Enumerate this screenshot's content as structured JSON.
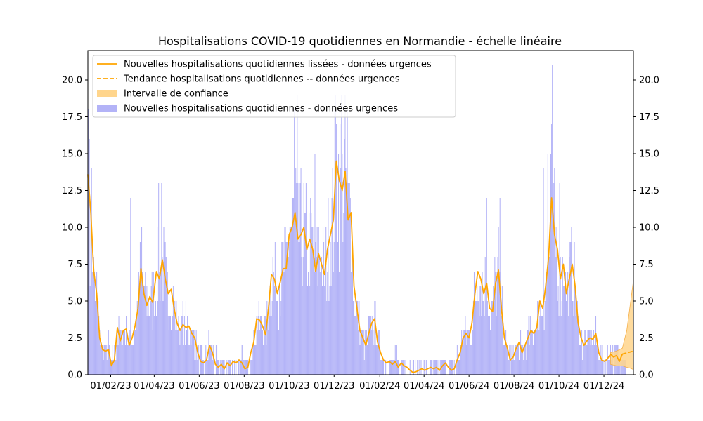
{
  "chart_data": {
    "type": "bar",
    "title": "Hospitalisations COVID-19 quotidiennes en Normandie - échelle linéaire",
    "xlabel": "",
    "ylabel": "",
    "ylim": [
      0,
      22
    ],
    "yticks": [
      "0.0",
      "2.5",
      "5.0",
      "7.5",
      "10.0",
      "12.5",
      "15.0",
      "17.5",
      "20.0"
    ],
    "ytick_values": [
      0,
      2.5,
      5,
      7.5,
      10,
      12.5,
      15,
      17.5,
      20
    ],
    "x_range": [
      "2023-01-01",
      "2025-01-10"
    ],
    "xticks": [
      "01/02/23",
      "01/04/23",
      "01/06/23",
      "01/08/23",
      "01/10/23",
      "01/12/23",
      "01/02/24",
      "01/04/24",
      "01/06/24",
      "01/08/24",
      "01/10/24",
      "01/12/24"
    ],
    "xtick_dates": [
      "2023-02-01",
      "2023-04-01",
      "2023-06-01",
      "2023-08-01",
      "2023-10-01",
      "2023-12-01",
      "2024-02-01",
      "2024-04-01",
      "2024-06-01",
      "2024-08-01",
      "2024-10-01",
      "2024-12-01"
    ],
    "grid": false,
    "legend_position": "top-left",
    "colors": {
      "bars": "#b3b3f7",
      "smoothed": "#ffa500",
      "trend": "#ffa500",
      "confidence": "#ffd58c"
    },
    "series": [
      {
        "name": "Nouvelles hospitalisations quotidiennes lissées - données urgences",
        "kind": "line",
        "points": [
          [
            "2023-01-01",
            13.6
          ],
          [
            "2023-01-05",
            11.0
          ],
          [
            "2023-01-09",
            7.0
          ],
          [
            "2023-01-13",
            5.5
          ],
          [
            "2023-01-17",
            2.5
          ],
          [
            "2023-01-21",
            1.7
          ],
          [
            "2023-01-25",
            1.6
          ],
          [
            "2023-01-29",
            1.7
          ],
          [
            "2023-02-02",
            0.6
          ],
          [
            "2023-02-06",
            1.0
          ],
          [
            "2023-02-10",
            3.2
          ],
          [
            "2023-02-14",
            2.3
          ],
          [
            "2023-02-18",
            3.0
          ],
          [
            "2023-02-22",
            3.1
          ],
          [
            "2023-02-26",
            2.0
          ],
          [
            "2023-03-02",
            2.5
          ],
          [
            "2023-03-06",
            3.3
          ],
          [
            "2023-03-10",
            4.5
          ],
          [
            "2023-03-14",
            7.2
          ],
          [
            "2023-03-18",
            5.5
          ],
          [
            "2023-03-22",
            4.7
          ],
          [
            "2023-03-26",
            5.3
          ],
          [
            "2023-03-30",
            4.9
          ],
          [
            "2023-04-04",
            7.0
          ],
          [
            "2023-04-08",
            6.5
          ],
          [
            "2023-04-12",
            7.8
          ],
          [
            "2023-04-16",
            6.5
          ],
          [
            "2023-04-20",
            5.5
          ],
          [
            "2023-04-24",
            5.8
          ],
          [
            "2023-04-28",
            4.5
          ],
          [
            "2023-05-02",
            3.5
          ],
          [
            "2023-05-06",
            3.0
          ],
          [
            "2023-05-10",
            3.4
          ],
          [
            "2023-05-14",
            3.2
          ],
          [
            "2023-05-18",
            3.3
          ],
          [
            "2023-05-22",
            2.8
          ],
          [
            "2023-05-26",
            2.5
          ],
          [
            "2023-05-30",
            1.5
          ],
          [
            "2023-06-03",
            0.9
          ],
          [
            "2023-06-07",
            0.8
          ],
          [
            "2023-06-11",
            1.0
          ],
          [
            "2023-06-15",
            2.0
          ],
          [
            "2023-06-19",
            1.5
          ],
          [
            "2023-06-23",
            0.7
          ],
          [
            "2023-06-27",
            0.5
          ],
          [
            "2023-07-01",
            0.7
          ],
          [
            "2023-07-05",
            0.4
          ],
          [
            "2023-07-09",
            0.8
          ],
          [
            "2023-07-13",
            0.6
          ],
          [
            "2023-07-17",
            0.9
          ],
          [
            "2023-07-21",
            0.8
          ],
          [
            "2023-07-25",
            1.0
          ],
          [
            "2023-07-29",
            0.8
          ],
          [
            "2023-08-02",
            0.4
          ],
          [
            "2023-08-06",
            0.5
          ],
          [
            "2023-08-10",
            1.5
          ],
          [
            "2023-08-14",
            2.2
          ],
          [
            "2023-08-18",
            3.8
          ],
          [
            "2023-08-22",
            3.7
          ],
          [
            "2023-08-26",
            3.3
          ],
          [
            "2023-08-30",
            2.7
          ],
          [
            "2023-09-03",
            4.5
          ],
          [
            "2023-09-07",
            6.8
          ],
          [
            "2023-09-11",
            6.5
          ],
          [
            "2023-09-15",
            5.5
          ],
          [
            "2023-09-19",
            6.3
          ],
          [
            "2023-09-23",
            7.2
          ],
          [
            "2023-09-27",
            7.2
          ],
          [
            "2023-10-01",
            9.5
          ],
          [
            "2023-10-05",
            10.0
          ],
          [
            "2023-10-09",
            11.0
          ],
          [
            "2023-10-13",
            9.2
          ],
          [
            "2023-10-17",
            9.5
          ],
          [
            "2023-10-21",
            10.0
          ],
          [
            "2023-10-25",
            8.5
          ],
          [
            "2023-10-29",
            9.2
          ],
          [
            "2023-11-02",
            8.5
          ],
          [
            "2023-11-06",
            7.0
          ],
          [
            "2023-11-10",
            8.2
          ],
          [
            "2023-11-14",
            7.5
          ],
          [
            "2023-11-18",
            6.8
          ],
          [
            "2023-11-22",
            8.5
          ],
          [
            "2023-11-26",
            9.5
          ],
          [
            "2023-11-30",
            10.5
          ],
          [
            "2023-12-04",
            14.5
          ],
          [
            "2023-12-08",
            13.2
          ],
          [
            "2023-12-12",
            12.5
          ],
          [
            "2023-12-16",
            13.8
          ],
          [
            "2023-12-20",
            10.5
          ],
          [
            "2023-12-24",
            11.0
          ],
          [
            "2023-12-28",
            6.0
          ],
          [
            "2024-01-01",
            4.5
          ],
          [
            "2024-01-05",
            3.0
          ],
          [
            "2024-01-09",
            2.5
          ],
          [
            "2024-01-13",
            2.0
          ],
          [
            "2024-01-17",
            2.8
          ],
          [
            "2024-01-21",
            3.5
          ],
          [
            "2024-01-25",
            3.8
          ],
          [
            "2024-01-29",
            2.2
          ],
          [
            "2024-02-02",
            1.5
          ],
          [
            "2024-02-06",
            1.0
          ],
          [
            "2024-02-10",
            0.8
          ],
          [
            "2024-02-14",
            0.9
          ],
          [
            "2024-02-18",
            0.7
          ],
          [
            "2024-02-22",
            0.9
          ],
          [
            "2024-02-26",
            0.5
          ],
          [
            "2024-03-01",
            0.8
          ],
          [
            "2024-03-05",
            0.6
          ],
          [
            "2024-03-09",
            0.5
          ],
          [
            "2024-03-13",
            0.3
          ],
          [
            "2024-03-17",
            0.15
          ],
          [
            "2024-03-21",
            0.2
          ],
          [
            "2024-03-25",
            0.3
          ],
          [
            "2024-03-29",
            0.4
          ],
          [
            "2024-04-02",
            0.3
          ],
          [
            "2024-04-06",
            0.4
          ],
          [
            "2024-04-10",
            0.5
          ],
          [
            "2024-04-14",
            0.4
          ],
          [
            "2024-04-18",
            0.5
          ],
          [
            "2024-04-22",
            0.3
          ],
          [
            "2024-04-26",
            0.6
          ],
          [
            "2024-04-30",
            0.8
          ],
          [
            "2024-05-04",
            0.5
          ],
          [
            "2024-05-08",
            0.3
          ],
          [
            "2024-05-12",
            0.4
          ],
          [
            "2024-05-16",
            1.0
          ],
          [
            "2024-05-20",
            1.5
          ],
          [
            "2024-05-24",
            2.5
          ],
          [
            "2024-05-28",
            2.8
          ],
          [
            "2024-06-01",
            2.5
          ],
          [
            "2024-06-05",
            3.5
          ],
          [
            "2024-06-09",
            5.5
          ],
          [
            "2024-06-13",
            7.0
          ],
          [
            "2024-06-17",
            6.5
          ],
          [
            "2024-06-21",
            5.5
          ],
          [
            "2024-06-25",
            6.2
          ],
          [
            "2024-06-29",
            4.5
          ],
          [
            "2024-07-03",
            4.3
          ],
          [
            "2024-07-07",
            6.2
          ],
          [
            "2024-07-11",
            7.1
          ],
          [
            "2024-07-15",
            4.5
          ],
          [
            "2024-07-19",
            2.5
          ],
          [
            "2024-07-23",
            1.8
          ],
          [
            "2024-07-27",
            1.0
          ],
          [
            "2024-07-31",
            1.2
          ],
          [
            "2024-08-04",
            1.8
          ],
          [
            "2024-08-08",
            2.2
          ],
          [
            "2024-08-12",
            1.5
          ],
          [
            "2024-08-16",
            2.0
          ],
          [
            "2024-08-20",
            2.5
          ],
          [
            "2024-08-24",
            3.0
          ],
          [
            "2024-08-28",
            2.8
          ],
          [
            "2024-09-01",
            3.2
          ],
          [
            "2024-09-05",
            5.0
          ],
          [
            "2024-09-09",
            4.5
          ],
          [
            "2024-09-13",
            6.0
          ],
          [
            "2024-09-17",
            8.0
          ],
          [
            "2024-09-21",
            12.0
          ],
          [
            "2024-09-25",
            9.5
          ],
          [
            "2024-09-29",
            8.5
          ],
          [
            "2024-10-03",
            6.5
          ],
          [
            "2024-10-07",
            7.5
          ],
          [
            "2024-10-11",
            5.5
          ],
          [
            "2024-10-15",
            6.5
          ],
          [
            "2024-10-19",
            7.5
          ],
          [
            "2024-10-23",
            6.0
          ],
          [
            "2024-10-27",
            3.5
          ],
          [
            "2024-10-31",
            2.5
          ],
          [
            "2024-11-04",
            2.0
          ],
          [
            "2024-11-08",
            2.3
          ],
          [
            "2024-11-12",
            2.5
          ],
          [
            "2024-11-16",
            2.4
          ],
          [
            "2024-11-20",
            2.8
          ],
          [
            "2024-11-24",
            1.5
          ],
          [
            "2024-11-28",
            1.0
          ],
          [
            "2024-12-02",
            0.9
          ],
          [
            "2024-12-06",
            1.1
          ],
          [
            "2024-12-10",
            1.4
          ],
          [
            "2024-12-14",
            1.2
          ],
          [
            "2024-12-18",
            1.3
          ],
          [
            "2024-12-22",
            0.9
          ],
          [
            "2024-12-26",
            1.4
          ]
        ]
      },
      {
        "name": "Tendance hospitalisations quotidiennes -- données urgences",
        "kind": "dashed-line",
        "points": [
          [
            "2024-12-26",
            1.4
          ],
          [
            "2025-01-10",
            1.6
          ]
        ]
      },
      {
        "name": "Intervalle de confiance",
        "kind": "band",
        "points": [
          [
            "2024-12-10",
            1.5,
            0.7
          ],
          [
            "2024-12-18",
            1.6,
            0.6
          ],
          [
            "2024-12-26",
            1.8,
            0.6
          ],
          [
            "2025-01-01",
            3.0,
            0.5
          ],
          [
            "2025-01-05",
            4.5,
            0.45
          ],
          [
            "2025-01-10",
            6.4,
            0.35
          ]
        ]
      },
      {
        "name": "Nouvelles hospitalisations quotidiennes - données urgences",
        "kind": "bar",
        "notes_peaks": [
          [
            "2023-01-01",
            13
          ],
          [
            "2023-01-02",
            18
          ],
          [
            "2023-01-03",
            16
          ],
          [
            "2023-01-05",
            11
          ],
          [
            "2023-02-28",
            12
          ],
          [
            "2023-03-15",
            10
          ],
          [
            "2023-04-07",
            13
          ],
          [
            "2023-04-11",
            13
          ],
          [
            "2023-10-08",
            18
          ],
          [
            "2023-10-12",
            19
          ],
          [
            "2023-11-05",
            15
          ],
          [
            "2023-12-03",
            19
          ],
          [
            "2023-12-11",
            19
          ],
          [
            "2023-12-19",
            18
          ],
          [
            "2024-06-25",
            12
          ],
          [
            "2024-07-13",
            12
          ],
          [
            "2024-09-10",
            14
          ],
          [
            "2024-09-16",
            15
          ],
          [
            "2024-09-22",
            21
          ],
          [
            "2024-10-02",
            13
          ]
        ]
      }
    ]
  }
}
